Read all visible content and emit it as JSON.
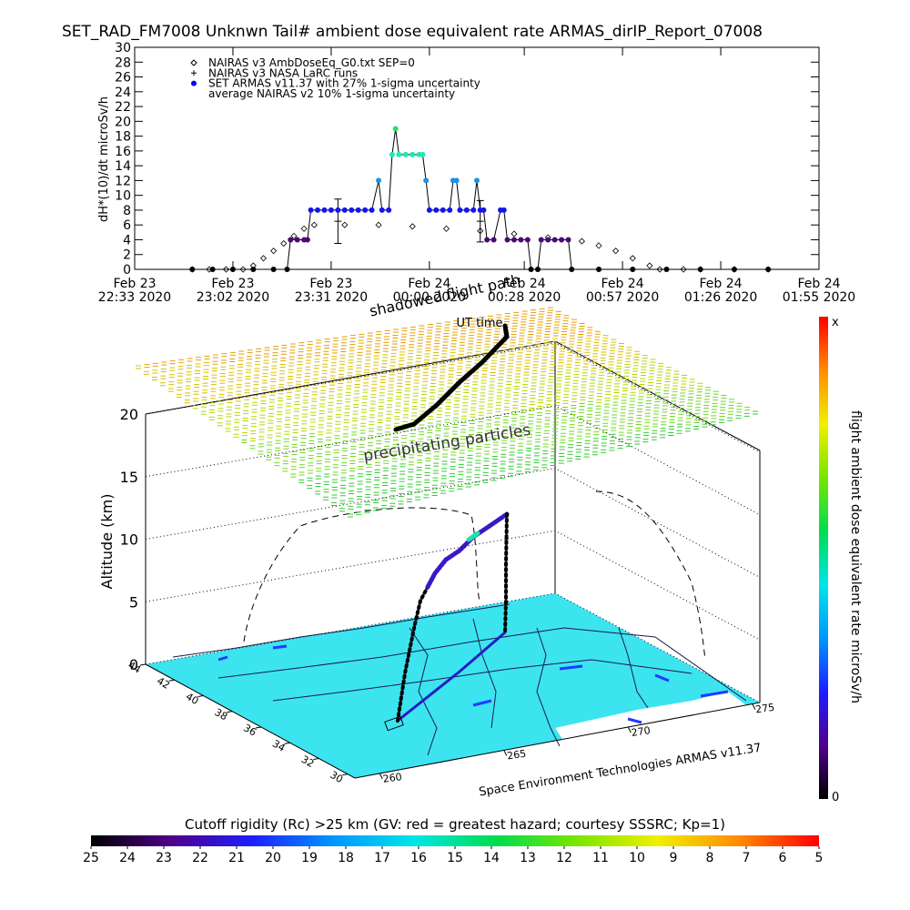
{
  "chart_data": [
    {
      "type": "line",
      "title": "SET_RAD_FM7008  Unknwn Tail#  ambient dose equivalent rate ARMAS_dirIP_Report_07008",
      "ylabel": "dH*(10)/dt microSv/h",
      "xlabel": "UT time",
      "xlim": [
        "2020-02-23 22:33",
        "2020-02-24 01:55"
      ],
      "xticks": [
        {
          "value": "2020-02-23 22:33",
          "label": "Feb 23\n22:33 2020"
        },
        {
          "value": "2020-02-23 23:02",
          "label": "Feb 23\n23:02 2020"
        },
        {
          "value": "2020-02-23 23:31",
          "label": "Feb 23\n23:31 2020"
        },
        {
          "value": "2020-02-24 00:00",
          "label": "Feb 24\n00:00 2020"
        },
        {
          "value": "2020-02-24 00:28",
          "label": "Feb 24\n00:28 2020"
        },
        {
          "value": "2020-02-24 00:57",
          "label": "Feb 24\n00:57 2020"
        },
        {
          "value": "2020-02-24 01:26",
          "label": "Feb 24\n01:26 2020"
        },
        {
          "value": "2020-02-24 01:55",
          "label": "Feb 24\n01:55 2020"
        }
      ],
      "ylim": [
        0,
        30
      ],
      "yticks": [
        0,
        2,
        4,
        6,
        8,
        10,
        12,
        14,
        16,
        18,
        20,
        22,
        24,
        26,
        28,
        30
      ],
      "series": [
        {
          "name": "NAIRAS v3 AmbDoseEq_G0.txt SEP=0",
          "marker": "diamond",
          "color": "#000000",
          "x": [
            "2020-02-23 22:50",
            "2020-02-23 22:55",
            "2020-02-23 23:00",
            "2020-02-23 23:05",
            "2020-02-23 23:08",
            "2020-02-23 23:11",
            "2020-02-23 23:14",
            "2020-02-23 23:17",
            "2020-02-23 23:20",
            "2020-02-23 23:23",
            "2020-02-23 23:26",
            "2020-02-23 23:35",
            "2020-02-23 23:45",
            "2020-02-23 23:55",
            "2020-02-24 00:05",
            "2020-02-24 00:15",
            "2020-02-24 00:25",
            "2020-02-24 00:35",
            "2020-02-24 00:45",
            "2020-02-24 00:50",
            "2020-02-24 00:55",
            "2020-02-24 01:00",
            "2020-02-24 01:05",
            "2020-02-24 01:08",
            "2020-02-24 01:15",
            "2020-02-24 01:20",
            "2020-02-24 01:30",
            "2020-02-24 01:40"
          ],
          "values": [
            0,
            0,
            0,
            0,
            0.5,
            1.5,
            2.5,
            3.5,
            4.5,
            5.5,
            6,
            6,
            6,
            5.8,
            5.5,
            5.2,
            4.8,
            4.3,
            3.8,
            3.2,
            2.5,
            1.5,
            0.5,
            0,
            0,
            0,
            0,
            0
          ]
        },
        {
          "name": "NAIRAS v3 NASA LaRC runs",
          "marker": "plus",
          "color": "#000000",
          "x": [
            "2020-02-23 23:33",
            "2020-02-24 00:15"
          ],
          "values": [
            6.5,
            6.5
          ],
          "errors": [
            3,
            2.8
          ]
        },
        {
          "name": "SET ARMAS v11.37 with 27% 1-sigma uncertainty",
          "marker": "dot",
          "color": "#0000ff",
          "line_color": "#000000",
          "value_colors": [
            [
              0,
              "#000000"
            ],
            [
              4,
              "#4b0a78"
            ],
            [
              8,
              "#1414f0"
            ],
            [
              12,
              "#1e90e6"
            ],
            [
              15.5,
              "#20e6b4"
            ],
            [
              19,
              "#28e060"
            ]
          ],
          "x": [
            "2020-02-23 22:50",
            "2020-02-23 22:56",
            "2020-02-23 23:02",
            "2020-02-23 23:08",
            "2020-02-23 23:14",
            "2020-02-23 23:18",
            "2020-02-23 23:19",
            "2020-02-23 23:21",
            "2020-02-23 23:23",
            "2020-02-23 23:24",
            "2020-02-23 23:25",
            "2020-02-23 23:27",
            "2020-02-23 23:29",
            "2020-02-23 23:31",
            "2020-02-23 23:33",
            "2020-02-23 23:35",
            "2020-02-23 23:37",
            "2020-02-23 23:39",
            "2020-02-23 23:41",
            "2020-02-23 23:43",
            "2020-02-23 23:45",
            "2020-02-23 23:46",
            "2020-02-23 23:48",
            "2020-02-23 23:49",
            "2020-02-23 23:50",
            "2020-02-23 23:51",
            "2020-02-23 23:53",
            "2020-02-23 23:55",
            "2020-02-23 23:57",
            "2020-02-23 23:58",
            "2020-02-23 23:59",
            "2020-02-24 00:00",
            "2020-02-24 00:02",
            "2020-02-24 00:04",
            "2020-02-24 00:06",
            "2020-02-24 00:07",
            "2020-02-24 00:08",
            "2020-02-24 00:09",
            "2020-02-24 00:11",
            "2020-02-24 00:13",
            "2020-02-24 00:14",
            "2020-02-24 00:15",
            "2020-02-24 00:16",
            "2020-02-24 00:17",
            "2020-02-24 00:19",
            "2020-02-24 00:21",
            "2020-02-24 00:22",
            "2020-02-24 00:23",
            "2020-02-24 00:25",
            "2020-02-24 00:27",
            "2020-02-24 00:29",
            "2020-02-24 00:30",
            "2020-02-24 00:32",
            "2020-02-24 00:33",
            "2020-02-24 00:35",
            "2020-02-24 00:37",
            "2020-02-24 00:39",
            "2020-02-24 00:41",
            "2020-02-24 00:42",
            "2020-02-24 00:50",
            "2020-02-24 01:00",
            "2020-02-24 01:10",
            "2020-02-24 01:20",
            "2020-02-24 01:30",
            "2020-02-24 01:40"
          ],
          "values": [
            0,
            0,
            0,
            0,
            0,
            0,
            4,
            4,
            4,
            4,
            8,
            8,
            8,
            8,
            8,
            8,
            8,
            8,
            8,
            8,
            12,
            8,
            8,
            15.5,
            19,
            15.5,
            15.5,
            15.5,
            15.5,
            15.5,
            12,
            8,
            8,
            8,
            8,
            12,
            12,
            8,
            8,
            8,
            12,
            8,
            8,
            4,
            4,
            8,
            8,
            4,
            4,
            4,
            4,
            0,
            0,
            4,
            4,
            4,
            4,
            4,
            0,
            0,
            0,
            0,
            0,
            0,
            0
          ]
        },
        {
          "name": "average NAIRAS v2 10% 1-sigma uncertainty",
          "marker": "none",
          "color": "#000000"
        }
      ]
    },
    {
      "type": "3d",
      "zlabel": "Altitude (km)",
      "zlim": [
        0,
        20
      ],
      "zticks": [
        0,
        5,
        10,
        15,
        20
      ],
      "ylim": [
        44,
        29.5
      ],
      "yticks": [
        44,
        42,
        40,
        38,
        36,
        34,
        32,
        30
      ],
      "xlim": [
        259,
        275.3
      ],
      "xticks": [
        260,
        265,
        270,
        275
      ],
      "annotations": [
        "shadowed flight path",
        "precipitating particles",
        "Space Environment Technologies ARMAS v11.37"
      ],
      "floor_color": "#3ce4f0"
    },
    {
      "type": "colorbar",
      "orientation": "vertical",
      "label": "flight ambient dose equivalent rate microSv/h",
      "tick_labels": [
        "0",
        "x"
      ],
      "colors": [
        "#000000",
        "#50008c",
        "#1e1eff",
        "#0096ff",
        "#00e6e6",
        "#00dc50",
        "#78e600",
        "#f0f000",
        "#ff8c00",
        "#ff0000"
      ]
    },
    {
      "type": "colorbar",
      "orientation": "horizontal",
      "title": "Cutoff rigidity (Rc) >25 km (GV: red = greatest hazard; courtesy SSSRC; Kp=1)",
      "xlim": [
        25,
        5
      ],
      "xticks": [
        25,
        24,
        23,
        22,
        21,
        20,
        19,
        18,
        17,
        16,
        15,
        14,
        13,
        12,
        11,
        10,
        9,
        8,
        7,
        6,
        5
      ],
      "colors": [
        "#000000",
        "#50008c",
        "#1e1eff",
        "#0096ff",
        "#00e6e6",
        "#00dc50",
        "#78e600",
        "#f0f000",
        "#ff8c00",
        "#ff0000"
      ]
    }
  ]
}
